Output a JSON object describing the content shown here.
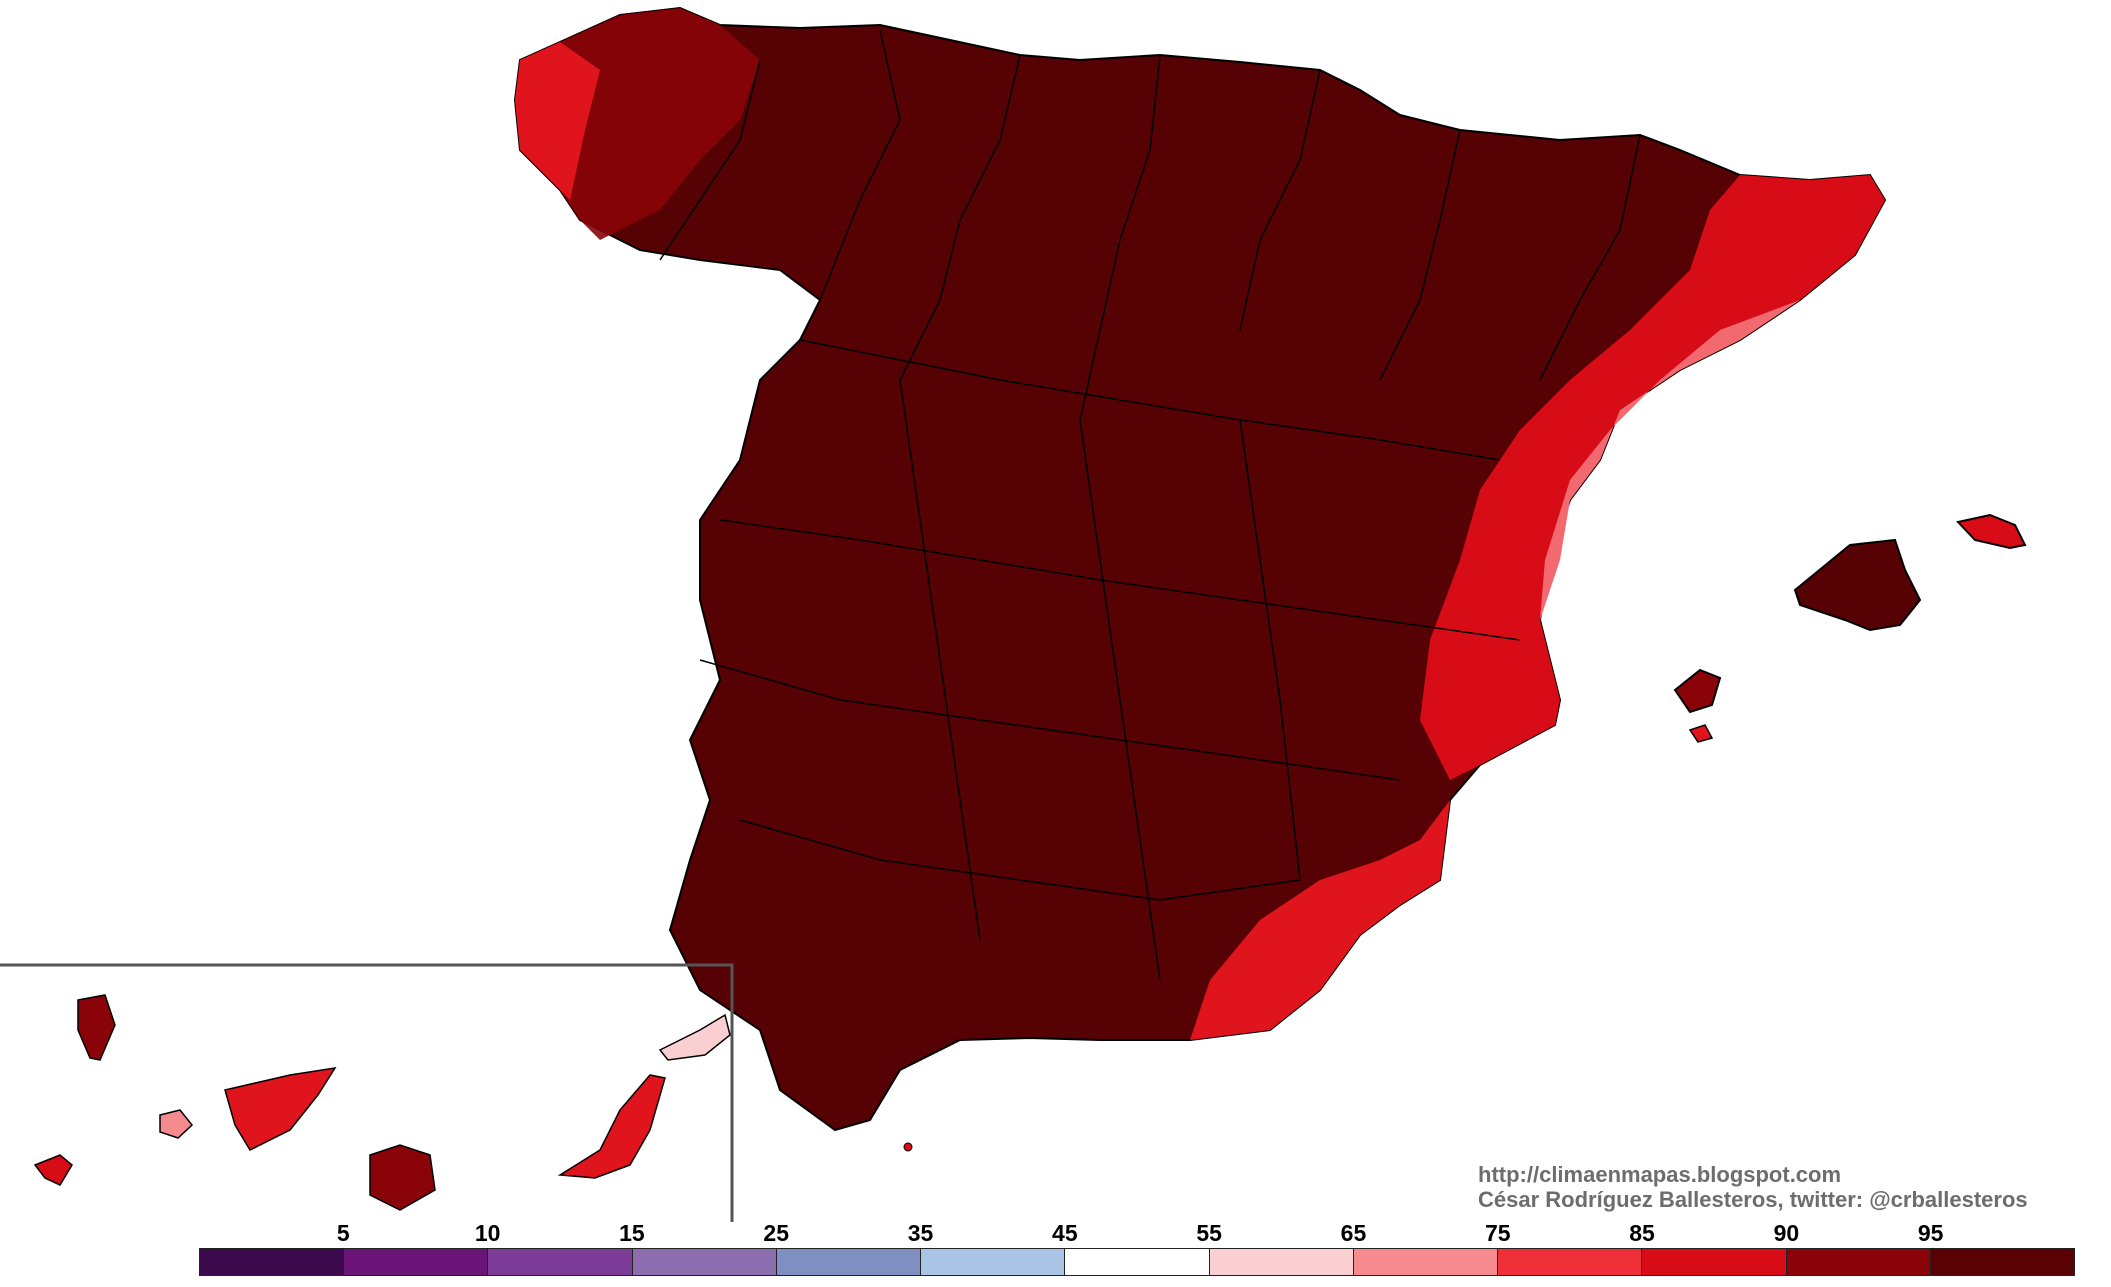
{
  "credits": {
    "url": "http://climaenmapas.blogspot.com",
    "author": "César Rodríguez Ballesteros, twitter: @crballesteros"
  },
  "legend": {
    "labels": [
      "5",
      "10",
      "15",
      "25",
      "35",
      "45",
      "55",
      "65",
      "75",
      "85",
      "90",
      "95"
    ],
    "colors": [
      "#3d0a4e",
      "#6a1478",
      "#7b3b96",
      "#8c6db0",
      "#7f8fc2",
      "#a9c4e4",
      "#ffffff",
      "#f9cfd2",
      "#f58a8f",
      "#ef3039",
      "#d80c16",
      "#8a0308",
      "#5a0103"
    ]
  },
  "colors": {
    "mainland": "#560103",
    "coastal_red": "#e0141c",
    "coastal_light": "#f26a6f",
    "border": "#000000"
  }
}
